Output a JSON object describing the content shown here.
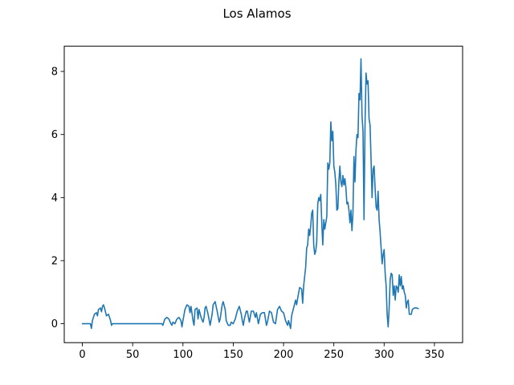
{
  "chart_data": {
    "type": "line",
    "title": "Los Alamos",
    "xlabel": "",
    "ylabel": "",
    "xlim": [
      -18,
      378
    ],
    "ylim": [
      -0.6,
      8.8
    ],
    "xticks": [
      0,
      50,
      100,
      150,
      200,
      250,
      300,
      350
    ],
    "yticks": [
      0,
      2,
      4,
      6,
      8
    ],
    "grid": false,
    "legend": "none",
    "series": [
      {
        "color": "#1f77b4",
        "points": [
          [
            0,
            0
          ],
          [
            8,
            0
          ],
          [
            9,
            -0.15
          ],
          [
            10,
            0.1
          ],
          [
            12,
            0.3
          ],
          [
            14,
            0.35
          ],
          [
            15,
            0.25
          ],
          [
            16,
            0.45
          ],
          [
            18,
            0.5
          ],
          [
            19,
            0.38
          ],
          [
            20,
            0.55
          ],
          [
            21,
            0.6
          ],
          [
            22,
            0.5
          ],
          [
            24,
            0.25
          ],
          [
            26,
            0.3
          ],
          [
            28,
            0.1
          ],
          [
            29,
            -0.05
          ],
          [
            30,
            0
          ],
          [
            79,
            0
          ],
          [
            80,
            -0.05
          ],
          [
            82,
            0.15
          ],
          [
            84,
            0.2
          ],
          [
            86,
            0.15
          ],
          [
            88,
            0
          ],
          [
            89,
            -0.05
          ],
          [
            90,
            0.05
          ],
          [
            92,
            0
          ],
          [
            94,
            0.15
          ],
          [
            96,
            0.2
          ],
          [
            98,
            0.1
          ],
          [
            99,
            -0.1
          ],
          [
            100,
            0.1
          ],
          [
            102,
            0.45
          ],
          [
            104,
            0.6
          ],
          [
            106,
            0.55
          ],
          [
            107,
            0.35
          ],
          [
            108,
            0.55
          ],
          [
            110,
            0.1
          ],
          [
            111,
            -0.05
          ],
          [
            112,
            0.45
          ],
          [
            114,
            0.5
          ],
          [
            115,
            0.15
          ],
          [
            116,
            0.45
          ],
          [
            118,
            0.2
          ],
          [
            120,
            0.05
          ],
          [
            121,
            0.2
          ],
          [
            122,
            0.5
          ],
          [
            123,
            0.55
          ],
          [
            125,
            0.3
          ],
          [
            127,
            -0.05
          ],
          [
            129,
            0.3
          ],
          [
            130,
            0.6
          ],
          [
            132,
            0.7
          ],
          [
            134,
            0.4
          ],
          [
            136,
            0.05
          ],
          [
            137,
            0.15
          ],
          [
            139,
            0.6
          ],
          [
            140,
            0.7
          ],
          [
            142,
            0.45
          ],
          [
            143,
            0.1
          ],
          [
            145,
            -0.05
          ],
          [
            147,
            -0.05
          ],
          [
            148,
            0.05
          ],
          [
            150,
            0
          ],
          [
            152,
            0.15
          ],
          [
            154,
            0.4
          ],
          [
            156,
            0.55
          ],
          [
            158,
            0.3
          ],
          [
            159,
            0.1
          ],
          [
            160,
            -0.05
          ],
          [
            161,
            0.15
          ],
          [
            163,
            0.4
          ],
          [
            164,
            0.4
          ],
          [
            166,
            0.05
          ],
          [
            168,
            0.4
          ],
          [
            170,
            0.4
          ],
          [
            172,
            0.2
          ],
          [
            173,
            0.35
          ],
          [
            175,
            0
          ],
          [
            177,
            0.3
          ],
          [
            179,
            0.35
          ],
          [
            181,
            0.35
          ],
          [
            183,
            -0.05
          ],
          [
            184,
            0.05
          ],
          [
            186,
            0.4
          ],
          [
            188,
            0.35
          ],
          [
            190,
            0.05
          ],
          [
            192,
            0
          ],
          [
            194,
            0.45
          ],
          [
            196,
            0.55
          ],
          [
            198,
            0.4
          ],
          [
            200,
            0.35
          ],
          [
            202,
            0.1
          ],
          [
            204,
            -0.05
          ],
          [
            205,
            0.1
          ],
          [
            207,
            -0.15
          ],
          [
            208,
            0.25
          ],
          [
            210,
            0.5
          ],
          [
            212,
            0.75
          ],
          [
            213,
            0.6
          ],
          [
            214,
            0.8
          ],
          [
            216,
            1.15
          ],
          [
            218,
            1.1
          ],
          [
            219,
            0.65
          ],
          [
            220,
            1.2
          ],
          [
            222,
            1.8
          ],
          [
            223,
            2.4
          ],
          [
            224,
            2.5
          ],
          [
            225,
            3.0
          ],
          [
            226,
            2.8
          ],
          [
            227,
            3.1
          ],
          [
            228,
            3.5
          ],
          [
            229,
            3.6
          ],
          [
            230,
            2.5
          ],
          [
            231,
            2.2
          ],
          [
            232,
            2.3
          ],
          [
            233,
            2.6
          ],
          [
            234,
            3.8
          ],
          [
            235,
            4.0
          ],
          [
            236,
            3.9
          ],
          [
            237,
            4.1
          ],
          [
            238,
            3.2
          ],
          [
            239,
            2.5
          ],
          [
            240,
            3.3
          ],
          [
            241,
            3.0
          ],
          [
            243,
            3.4
          ],
          [
            244,
            5.1
          ],
          [
            245,
            4.9
          ],
          [
            246,
            5.1
          ],
          [
            247,
            6.4
          ],
          [
            248,
            5.8
          ],
          [
            249,
            6.1
          ],
          [
            250,
            5.0
          ],
          [
            251,
            4.8
          ],
          [
            252,
            4.4
          ],
          [
            253,
            3.6
          ],
          [
            254,
            3.65
          ],
          [
            255,
            4.5
          ],
          [
            256,
            5.0
          ],
          [
            257,
            4.5
          ],
          [
            258,
            4.35
          ],
          [
            259,
            4.7
          ],
          [
            260,
            4.4
          ],
          [
            261,
            4.6
          ],
          [
            262,
            4.3
          ],
          [
            263,
            3.8
          ],
          [
            264,
            3.85
          ],
          [
            265,
            3.6
          ],
          [
            266,
            3.2
          ],
          [
            267,
            3.6
          ],
          [
            268,
            2.95
          ],
          [
            269,
            3.5
          ],
          [
            270,
            5.3
          ],
          [
            271,
            4.5
          ],
          [
            272,
            5.5
          ],
          [
            273,
            6.0
          ],
          [
            274,
            5.9
          ],
          [
            275,
            7.3
          ],
          [
            276,
            7.1
          ],
          [
            277,
            8.4
          ],
          [
            278,
            6.6
          ],
          [
            279,
            6.1
          ],
          [
            280,
            3.3
          ],
          [
            281,
            6.3
          ],
          [
            282,
            7.95
          ],
          [
            283,
            7.6
          ],
          [
            284,
            7.7
          ],
          [
            285,
            6.5
          ],
          [
            286,
            6.3
          ],
          [
            287,
            5.2
          ],
          [
            288,
            4.0
          ],
          [
            289,
            4.9
          ],
          [
            290,
            5.0
          ],
          [
            291,
            4.3
          ],
          [
            292,
            3.7
          ],
          [
            293,
            3.6
          ],
          [
            294,
            4.2
          ],
          [
            295,
            3.3
          ],
          [
            296,
            2.9
          ],
          [
            297,
            2.4
          ],
          [
            298,
            1.9
          ],
          [
            299,
            2.2
          ],
          [
            300,
            2.35
          ],
          [
            301,
            1.6
          ],
          [
            302,
            1.2
          ],
          [
            303,
            0.3
          ],
          [
            304,
            -0.1
          ],
          [
            305,
            0.5
          ],
          [
            306,
            1.4
          ],
          [
            307,
            1.6
          ],
          [
            308,
            1.55
          ],
          [
            309,
            0.9
          ],
          [
            310,
            1.2
          ],
          [
            311,
            0.75
          ],
          [
            312,
            1.2
          ],
          [
            313,
            1.15
          ],
          [
            314,
            1.0
          ],
          [
            315,
            1.55
          ],
          [
            316,
            1.2
          ],
          [
            317,
            1.5
          ],
          [
            318,
            1.1
          ],
          [
            319,
            1.2
          ],
          [
            320,
            1.0
          ],
          [
            321,
            0.9
          ],
          [
            322,
            0.5
          ],
          [
            323,
            0.7
          ],
          [
            324,
            0.75
          ],
          [
            325,
            0.3
          ],
          [
            327,
            0.3
          ],
          [
            328,
            0.45
          ],
          [
            330,
            0.5
          ],
          [
            332,
            0.5
          ],
          [
            334,
            0.48
          ]
        ]
      }
    ]
  }
}
